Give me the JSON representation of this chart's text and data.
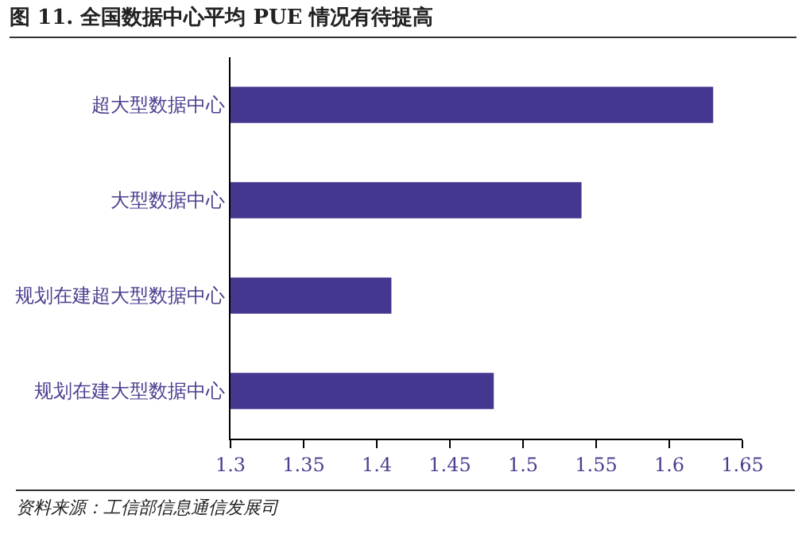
{
  "chart_data": {
    "type": "bar",
    "orientation": "horizontal",
    "title": "图 11. 全国数据中心平均 PUE 情况有待提高",
    "categories": [
      "超大型数据中心",
      "大型数据中心",
      "规划在建超大型数据中心",
      "规划在建大型数据中心"
    ],
    "values": [
      1.63,
      1.54,
      1.41,
      1.48
    ],
    "color": "#433790",
    "xlim": [
      1.3,
      1.65
    ],
    "xticks": [
      1.3,
      1.35,
      1.4,
      1.45,
      1.5,
      1.55,
      1.6,
      1.65
    ],
    "grid": false,
    "annotations": [
      "资料来源：工信部信息通信发展司"
    ]
  }
}
